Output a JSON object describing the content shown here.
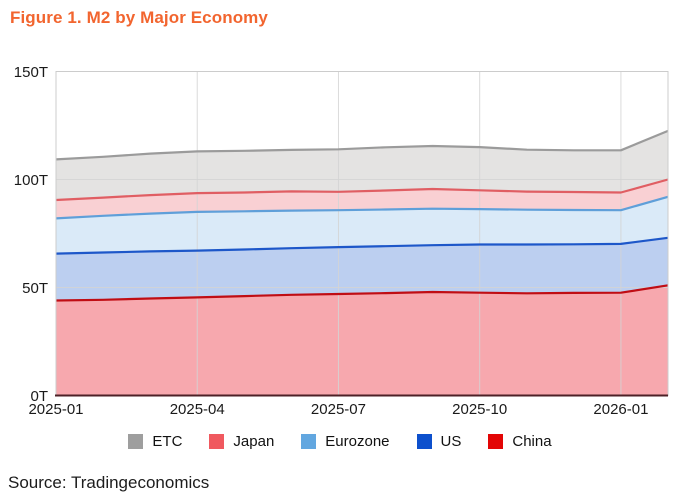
{
  "title": "Figure 1. M2 by Major Economy",
  "source": "Source: Tradingeconomics",
  "colors": {
    "title": "#f2652f",
    "grid": "#d4d4d4",
    "plot_border": "#cccccc",
    "baseline": "#4d2127",
    "axis_text": "#1a1a1a"
  },
  "chart_data": {
    "type": "area",
    "stacked": true,
    "title": "Figure 1. M2 by Major Economy",
    "unit": "T",
    "grid": true,
    "legend_position": "bottom",
    "ylim": [
      0,
      150
    ],
    "y_ticks": [
      {
        "label": "0T",
        "value": 0
      },
      {
        "label": "50T",
        "value": 50
      },
      {
        "label": "100T",
        "value": 100
      },
      {
        "label": "150T",
        "value": 150
      }
    ],
    "x": [
      "2025-01",
      "2025-02",
      "2025-03",
      "2025-04",
      "2025-05",
      "2025-06",
      "2025-07",
      "2025-08",
      "2025-09",
      "2025-10",
      "2025-11",
      "2025-12",
      "2026-01",
      "2026-02"
    ],
    "x_tick_indices": [
      0,
      3,
      6,
      9,
      12
    ],
    "x_tick_labels": [
      "2025-01",
      "2025-04",
      "2025-07",
      "2025-10",
      "2026-01"
    ],
    "series": [
      {
        "name": "China",
        "values": [
          44.0,
          44.3,
          44.9,
          45.4,
          46.0,
          46.6,
          47.0,
          47.4,
          47.9,
          47.6,
          47.3,
          47.5,
          47.6,
          51.0
        ],
        "fill": "#f7a8ae",
        "line": "#c00d14",
        "legend": "#e30505"
      },
      {
        "name": "US",
        "values": [
          21.7,
          21.9,
          21.8,
          21.7,
          21.6,
          21.6,
          21.7,
          21.7,
          21.7,
          22.3,
          22.6,
          22.5,
          22.6,
          22.0
        ],
        "fill": "#bccff0",
        "line": "#1d57c9",
        "legend": "#0d50cd"
      },
      {
        "name": "Eurozone",
        "values": [
          16.3,
          17.0,
          17.5,
          17.9,
          17.7,
          17.4,
          17.1,
          17.0,
          16.9,
          16.4,
          16.1,
          15.9,
          15.6,
          19.0
        ],
        "fill": "#daeaf8",
        "line": "#5f9fd9",
        "legend": "#62a7e0"
      },
      {
        "name": "Japan",
        "values": [
          8.5,
          8.4,
          8.6,
          8.7,
          8.7,
          8.9,
          8.5,
          8.8,
          9.1,
          8.7,
          8.4,
          8.3,
          8.2,
          8.0
        ],
        "fill": "#f9d0d3",
        "line": "#e05e63",
        "legend": "#f0595f"
      },
      {
        "name": "ETC",
        "values": [
          18.8,
          18.9,
          19.2,
          19.3,
          19.3,
          19.2,
          19.7,
          20.0,
          19.9,
          20.0,
          19.4,
          19.3,
          19.5,
          22.5
        ],
        "fill": "#e4e3e2",
        "line": "#9b9b9b",
        "legend": "#9e9e9e"
      }
    ],
    "legend_order": [
      "ETC",
      "Japan",
      "Eurozone",
      "US",
      "China"
    ]
  }
}
